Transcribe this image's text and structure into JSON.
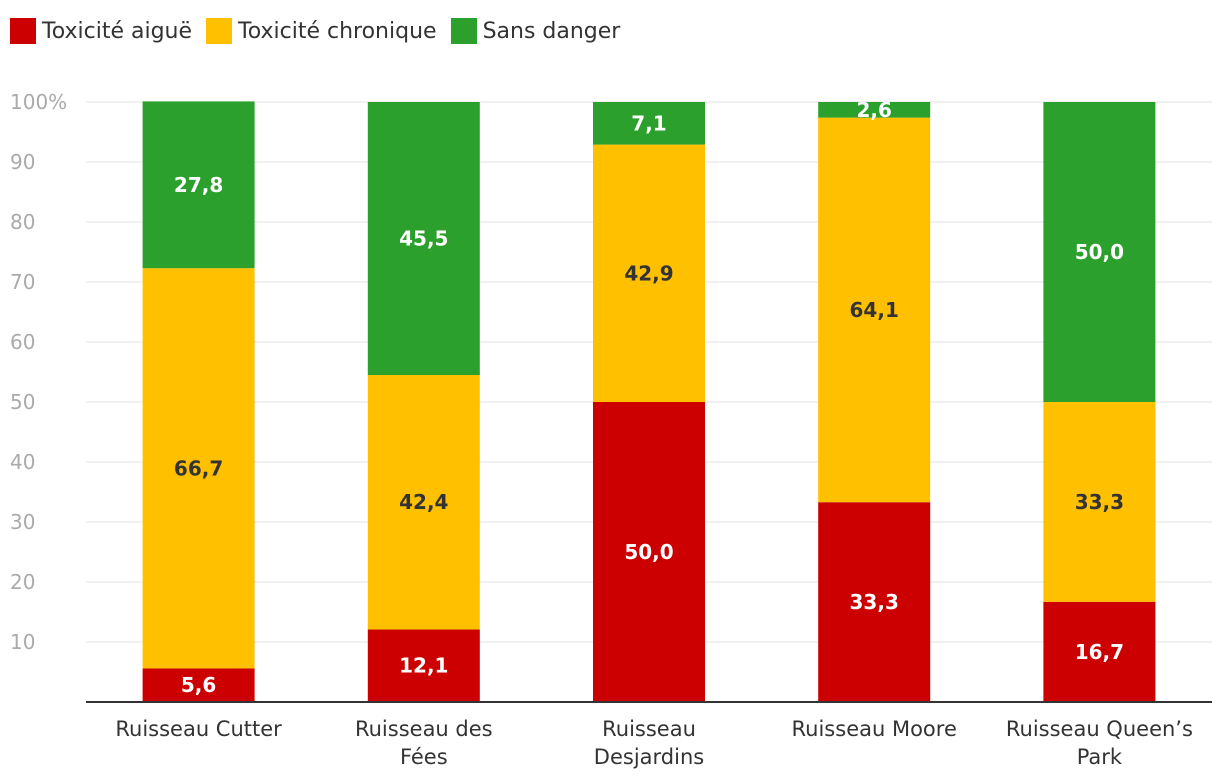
{
  "chart_data": {
    "type": "bar",
    "stacked": true,
    "title": "",
    "xlabel": "",
    "ylabel": "",
    "ylim": [
      0,
      100
    ],
    "yticks": [
      {
        "value": 10,
        "label": "10"
      },
      {
        "value": 20,
        "label": "20"
      },
      {
        "value": 30,
        "label": "30"
      },
      {
        "value": 40,
        "label": "40"
      },
      {
        "value": 50,
        "label": "50"
      },
      {
        "value": 60,
        "label": "60"
      },
      {
        "value": 70,
        "label": "70"
      },
      {
        "value": 80,
        "label": "80"
      },
      {
        "value": 90,
        "label": "90"
      },
      {
        "value": 100,
        "label": "100%"
      }
    ],
    "categories": [
      [
        "Ruisseau Cutter"
      ],
      [
        "Ruisseau des",
        "Fées"
      ],
      [
        "Ruisseau",
        "Desjardins"
      ],
      [
        "Ruisseau Moore"
      ],
      [
        "Ruisseau Queen’s",
        "Park"
      ]
    ],
    "series": [
      {
        "name": "Toxicité aiguë",
        "color": "#cc0000",
        "text_color": "#ffffff",
        "values": [
          5.6,
          12.1,
          50.0,
          33.3,
          16.7
        ],
        "labels": [
          "5,6",
          "12,1",
          "50,0",
          "33,3",
          "16,7"
        ]
      },
      {
        "name": "Toxicité chronique",
        "color": "#ffc000",
        "text_color": "#333333",
        "values": [
          66.7,
          42.4,
          42.9,
          64.1,
          33.3
        ],
        "labels": [
          "66,7",
          "42,4",
          "42,9",
          "64,1",
          "33,3"
        ]
      },
      {
        "name": "Sans danger",
        "color": "#2ca02c",
        "text_color": "#ffffff",
        "values": [
          27.8,
          45.5,
          7.1,
          2.6,
          50.0
        ],
        "labels": [
          "27,8",
          "45,5",
          "7,1",
          "2,6",
          "50,0"
        ]
      }
    ],
    "legend": "top-left",
    "grid": true
  }
}
